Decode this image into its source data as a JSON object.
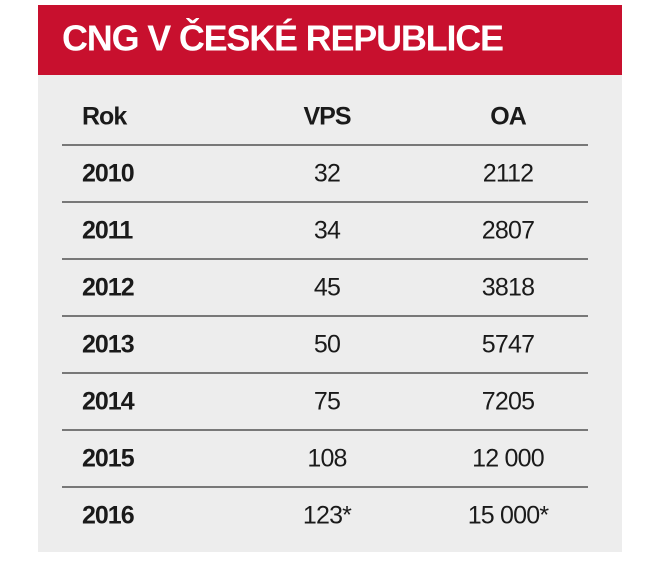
{
  "header": {
    "title": "CNG V ČESKÉ REPUBLICE"
  },
  "table": {
    "columns": [
      "Rok",
      "VPS",
      "OA"
    ],
    "rows": [
      [
        "2010",
        "32",
        "2112"
      ],
      [
        "2011",
        "34",
        "2807"
      ],
      [
        "2012",
        "45",
        "3818"
      ],
      [
        "2013",
        "50",
        "5747"
      ],
      [
        "2014",
        "75",
        "7205"
      ],
      [
        "2015",
        "108",
        "12 000"
      ],
      [
        "2016",
        "123*",
        "15 000*"
      ]
    ]
  }
}
